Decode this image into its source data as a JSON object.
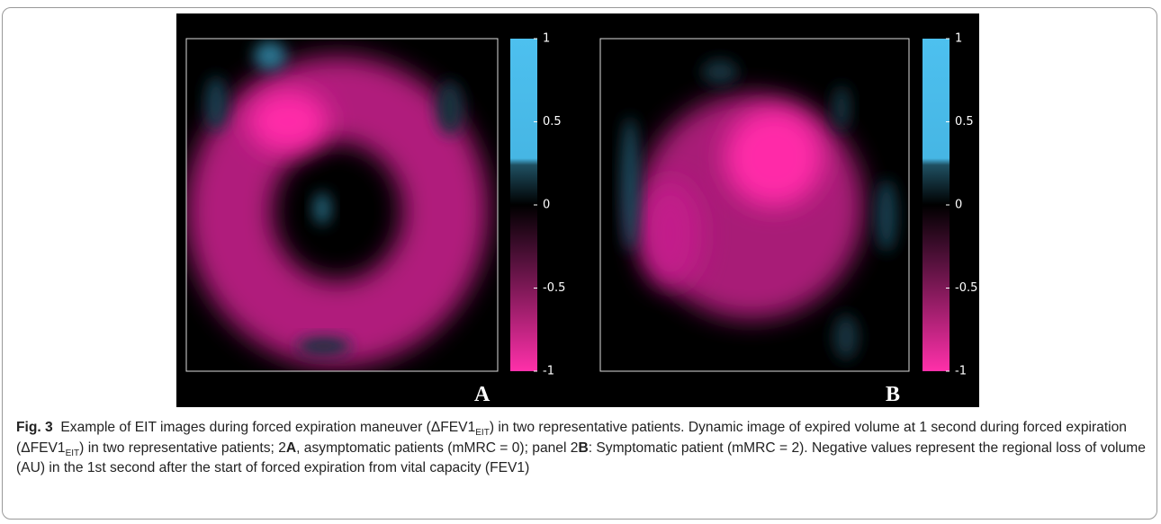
{
  "figure": {
    "panels": [
      {
        "label": "A",
        "colorbar_ticks": [
          1,
          0.5,
          0,
          -0.5,
          -1
        ]
      },
      {
        "label": "B",
        "colorbar_ticks": [
          1,
          0.5,
          0,
          -0.5,
          -1
        ]
      }
    ]
  },
  "caption": {
    "label": "Fig. 3",
    "parts": [
      "Example of EIT images during forced expiration maneuver (ΔFEV1",
      "EIT",
      ") in two representative patients. Dynamic image of expired volume at 1 second during forced expiration (ΔFEV1",
      "EIT",
      ") in two representative patients; 2",
      "A",
      ", asymptomatic patients (mMRC = 0); panel 2",
      "B",
      ": Symptomatic patient (mMRC = 2). Negative values represent the regional loss of volume (AU) in the 1st second after the start of forced expiration from vital capacity (FEV1)"
    ]
  }
}
